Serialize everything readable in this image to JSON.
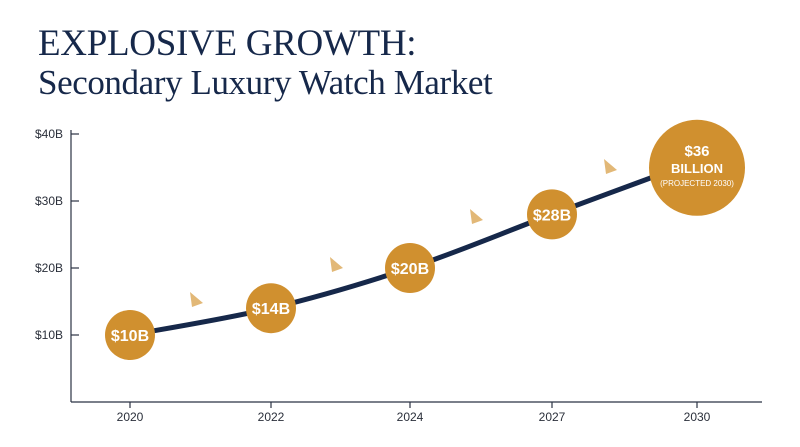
{
  "title": {
    "line1": "EXPLOSIVE GROWTH:",
    "line2": "Secondary Luxury Watch Market"
  },
  "colors": {
    "navy": "#16284a",
    "gold": "#d0902f",
    "arrow": "#e2b877",
    "axis": "#2b3344"
  },
  "chart_data": {
    "type": "line",
    "title": "EXPLOSIVE GROWTH: Secondary Luxury Watch Market",
    "xlabel": "",
    "ylabel": "",
    "x_ticks": [
      "2020",
      "2022",
      "2024",
      "2027",
      "2030"
    ],
    "y_ticks": [
      "$10B",
      "$20B",
      "$30B",
      "$40B"
    ],
    "y_tick_values": [
      10,
      20,
      30,
      40
    ],
    "ylim": [
      0,
      40
    ],
    "grid": false,
    "legend": "none",
    "points": [
      {
        "x": "2020",
        "y": 10,
        "label": "$10B"
      },
      {
        "x": "2022",
        "y": 14,
        "label": "$14B"
      },
      {
        "x": "2024",
        "y": 20,
        "label": "$20B"
      },
      {
        "x": "2027",
        "y": 28,
        "label": "$28B"
      },
      {
        "x": "2030",
        "y": 36,
        "label": "$36",
        "label_line2": "BILLION",
        "label_line3": "(PROJECTED 2030)"
      }
    ],
    "trend_arrows": 4
  }
}
